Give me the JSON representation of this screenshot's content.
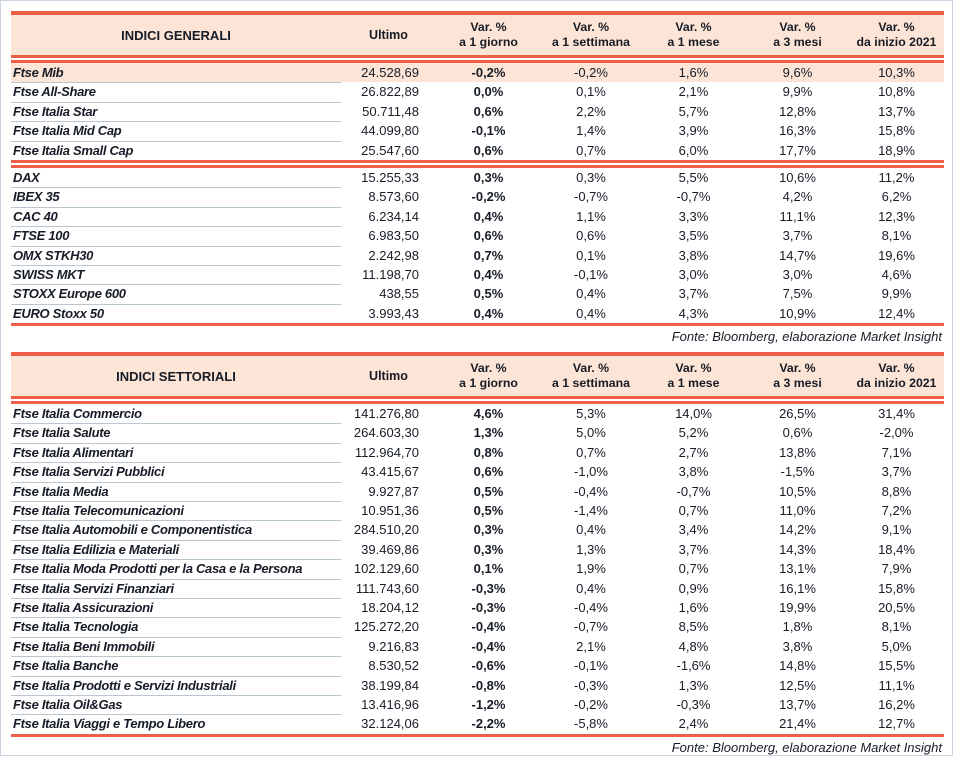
{
  "colors": {
    "accent_red": "#EF5F48",
    "header_fill": "#FCE4D6",
    "text_ink": "#171C26",
    "row_separator": "#B9C7D1"
  },
  "tables": [
    {
      "title": "INDICI GENERALI",
      "ultimo_label": "Ultimo",
      "var_label": "Var. %",
      "periods": [
        "a 1 giorno",
        "a 1 settimana",
        "a 1 mese",
        "a 3 mesi",
        "da inizio 2021"
      ],
      "source": "Fonte: Bloomberg, elaborazione Market Insight",
      "groups": [
        {
          "rows": [
            {
              "name": "Ftse Mib",
              "ultimo": "24.528,69",
              "d1": "-0,2%",
              "w1": "-0,2%",
              "m1": "1,6%",
              "m3": "9,6%",
              "ytd": "10,3%",
              "highlight": true
            },
            {
              "name": "Ftse All-Share",
              "ultimo": "26.822,89",
              "d1": "0,0%",
              "w1": "0,1%",
              "m1": "2,1%",
              "m3": "9,9%",
              "ytd": "10,8%"
            },
            {
              "name": "Ftse Italia Star",
              "ultimo": "50.711,48",
              "d1": "0,6%",
              "w1": "2,2%",
              "m1": "5,7%",
              "m3": "12,8%",
              "ytd": "13,7%"
            },
            {
              "name": "Ftse Italia Mid Cap",
              "ultimo": "44.099,80",
              "d1": "-0,1%",
              "w1": "1,4%",
              "m1": "3,9%",
              "m3": "16,3%",
              "ytd": "15,8%"
            },
            {
              "name": "Ftse Italia Small Cap",
              "ultimo": "25.547,60",
              "d1": "0,6%",
              "w1": "0,7%",
              "m1": "6,0%",
              "m3": "17,7%",
              "ytd": "18,9%"
            }
          ]
        },
        {
          "rows": [
            {
              "name": "DAX",
              "ultimo": "15.255,33",
              "d1": "0,3%",
              "w1": "0,3%",
              "m1": "5,5%",
              "m3": "10,6%",
              "ytd": "11,2%"
            },
            {
              "name": "IBEX 35",
              "ultimo": "8.573,60",
              "d1": "-0,2%",
              "w1": "-0,7%",
              "m1": "-0,7%",
              "m3": "4,2%",
              "ytd": "6,2%"
            },
            {
              "name": "CAC 40",
              "ultimo": "6.234,14",
              "d1": "0,4%",
              "w1": "1,1%",
              "m1": "3,3%",
              "m3": "11,1%",
              "ytd": "12,3%"
            },
            {
              "name": "FTSE 100",
              "ultimo": "6.983,50",
              "d1": "0,6%",
              "w1": "0,6%",
              "m1": "3,5%",
              "m3": "3,7%",
              "ytd": "8,1%"
            },
            {
              "name": "OMX STKH30",
              "ultimo": "2.242,98",
              "d1": "0,7%",
              "w1": "0,1%",
              "m1": "3,8%",
              "m3": "14,7%",
              "ytd": "19,6%"
            },
            {
              "name": "SWISS MKT",
              "ultimo": "11.198,70",
              "d1": "0,4%",
              "w1": "-0,1%",
              "m1": "3,0%",
              "m3": "3,0%",
              "ytd": "4,6%"
            },
            {
              "name": "STOXX Europe 600",
              "ultimo": "438,55",
              "d1": "0,5%",
              "w1": "0,4%",
              "m1": "3,7%",
              "m3": "7,5%",
              "ytd": "9,9%"
            },
            {
              "name": "EURO Stoxx 50",
              "ultimo": "3.993,43",
              "d1": "0,4%",
              "w1": "0,4%",
              "m1": "4,3%",
              "m3": "10,9%",
              "ytd": "12,4%"
            }
          ]
        }
      ]
    },
    {
      "title": "INDICI SETTORIALI",
      "ultimo_label": "Ultimo",
      "var_label": "Var. %",
      "periods": [
        "a 1 giorno",
        "a 1 settimana",
        "a 1 mese",
        "a 3 mesi",
        "da inizio 2021"
      ],
      "source": "Fonte: Bloomberg, elaborazione Market Insight",
      "groups": [
        {
          "rows": [
            {
              "name": "Ftse Italia Commercio",
              "ultimo": "141.276,80",
              "d1": "4,6%",
              "w1": "5,3%",
              "m1": "14,0%",
              "m3": "26,5%",
              "ytd": "31,4%"
            },
            {
              "name": "Ftse Italia Salute",
              "ultimo": "264.603,30",
              "d1": "1,3%",
              "w1": "5,0%",
              "m1": "5,2%",
              "m3": "0,6%",
              "ytd": "-2,0%"
            },
            {
              "name": "Ftse Italia Alimentari",
              "ultimo": "112.964,70",
              "d1": "0,8%",
              "w1": "0,7%",
              "m1": "2,7%",
              "m3": "13,8%",
              "ytd": "7,1%"
            },
            {
              "name": "Ftse Italia Servizi Pubblici",
              "ultimo": "43.415,67",
              "d1": "0,6%",
              "w1": "-1,0%",
              "m1": "3,8%",
              "m3": "-1,5%",
              "ytd": "3,7%"
            },
            {
              "name": "Ftse Italia Media",
              "ultimo": "9.927,87",
              "d1": "0,5%",
              "w1": "-0,4%",
              "m1": "-0,7%",
              "m3": "10,5%",
              "ytd": "8,8%"
            },
            {
              "name": "Ftse Italia Telecomunicazioni",
              "ultimo": "10.951,36",
              "d1": "0,5%",
              "w1": "-1,4%",
              "m1": "0,7%",
              "m3": "11,0%",
              "ytd": "7,2%"
            },
            {
              "name": "Ftse Italia Automobili e Componentistica",
              "ultimo": "284.510,20",
              "d1": "0,3%",
              "w1": "0,4%",
              "m1": "3,4%",
              "m3": "14,2%",
              "ytd": "9,1%"
            },
            {
              "name": "Ftse Italia Edilizia e Materiali",
              "ultimo": "39.469,86",
              "d1": "0,3%",
              "w1": "1,3%",
              "m1": "3,7%",
              "m3": "14,3%",
              "ytd": "18,4%"
            },
            {
              "name": "Ftse Italia Moda Prodotti per la Casa e la Persona",
              "ultimo": "102.129,60",
              "d1": "0,1%",
              "w1": "1,9%",
              "m1": "0,7%",
              "m3": "13,1%",
              "ytd": "7,9%"
            },
            {
              "name": "Ftse Italia Servizi Finanziari",
              "ultimo": "111.743,60",
              "d1": "-0,3%",
              "w1": "0,4%",
              "m1": "0,9%",
              "m3": "16,1%",
              "ytd": "15,8%"
            },
            {
              "name": "Ftse Italia Assicurazioni",
              "ultimo": "18.204,12",
              "d1": "-0,3%",
              "w1": "-0,4%",
              "m1": "1,6%",
              "m3": "19,9%",
              "ytd": "20,5%"
            },
            {
              "name": "Ftse Italia Tecnologia",
              "ultimo": "125.272,20",
              "d1": "-0,4%",
              "w1": "-0,7%",
              "m1": "8,5%",
              "m3": "1,8%",
              "ytd": "8,1%"
            },
            {
              "name": "Ftse Italia Beni Immobili",
              "ultimo": "9.216,83",
              "d1": "-0,4%",
              "w1": "2,1%",
              "m1": "4,8%",
              "m3": "3,8%",
              "ytd": "5,0%"
            },
            {
              "name": "Ftse Italia Banche",
              "ultimo": "8.530,52",
              "d1": "-0,6%",
              "w1": "-0,1%",
              "m1": "-1,6%",
              "m3": "14,8%",
              "ytd": "15,5%"
            },
            {
              "name": "Ftse Italia Prodotti e Servizi Industriali",
              "ultimo": "38.199,84",
              "d1": "-0,8%",
              "w1": "-0,3%",
              "m1": "1,3%",
              "m3": "12,5%",
              "ytd": "11,1%"
            },
            {
              "name": "Ftse Italia Oil&Gas",
              "ultimo": "13.416,96",
              "d1": "-1,2%",
              "w1": "-0,2%",
              "m1": "-0,3%",
              "m3": "13,7%",
              "ytd": "16,2%"
            },
            {
              "name": "Ftse Italia Viaggi e Tempo Libero",
              "ultimo": "32.124,06",
              "d1": "-2,2%",
              "w1": "-5,8%",
              "m1": "2,4%",
              "m3": "21,4%",
              "ytd": "12,7%"
            }
          ]
        }
      ]
    }
  ]
}
